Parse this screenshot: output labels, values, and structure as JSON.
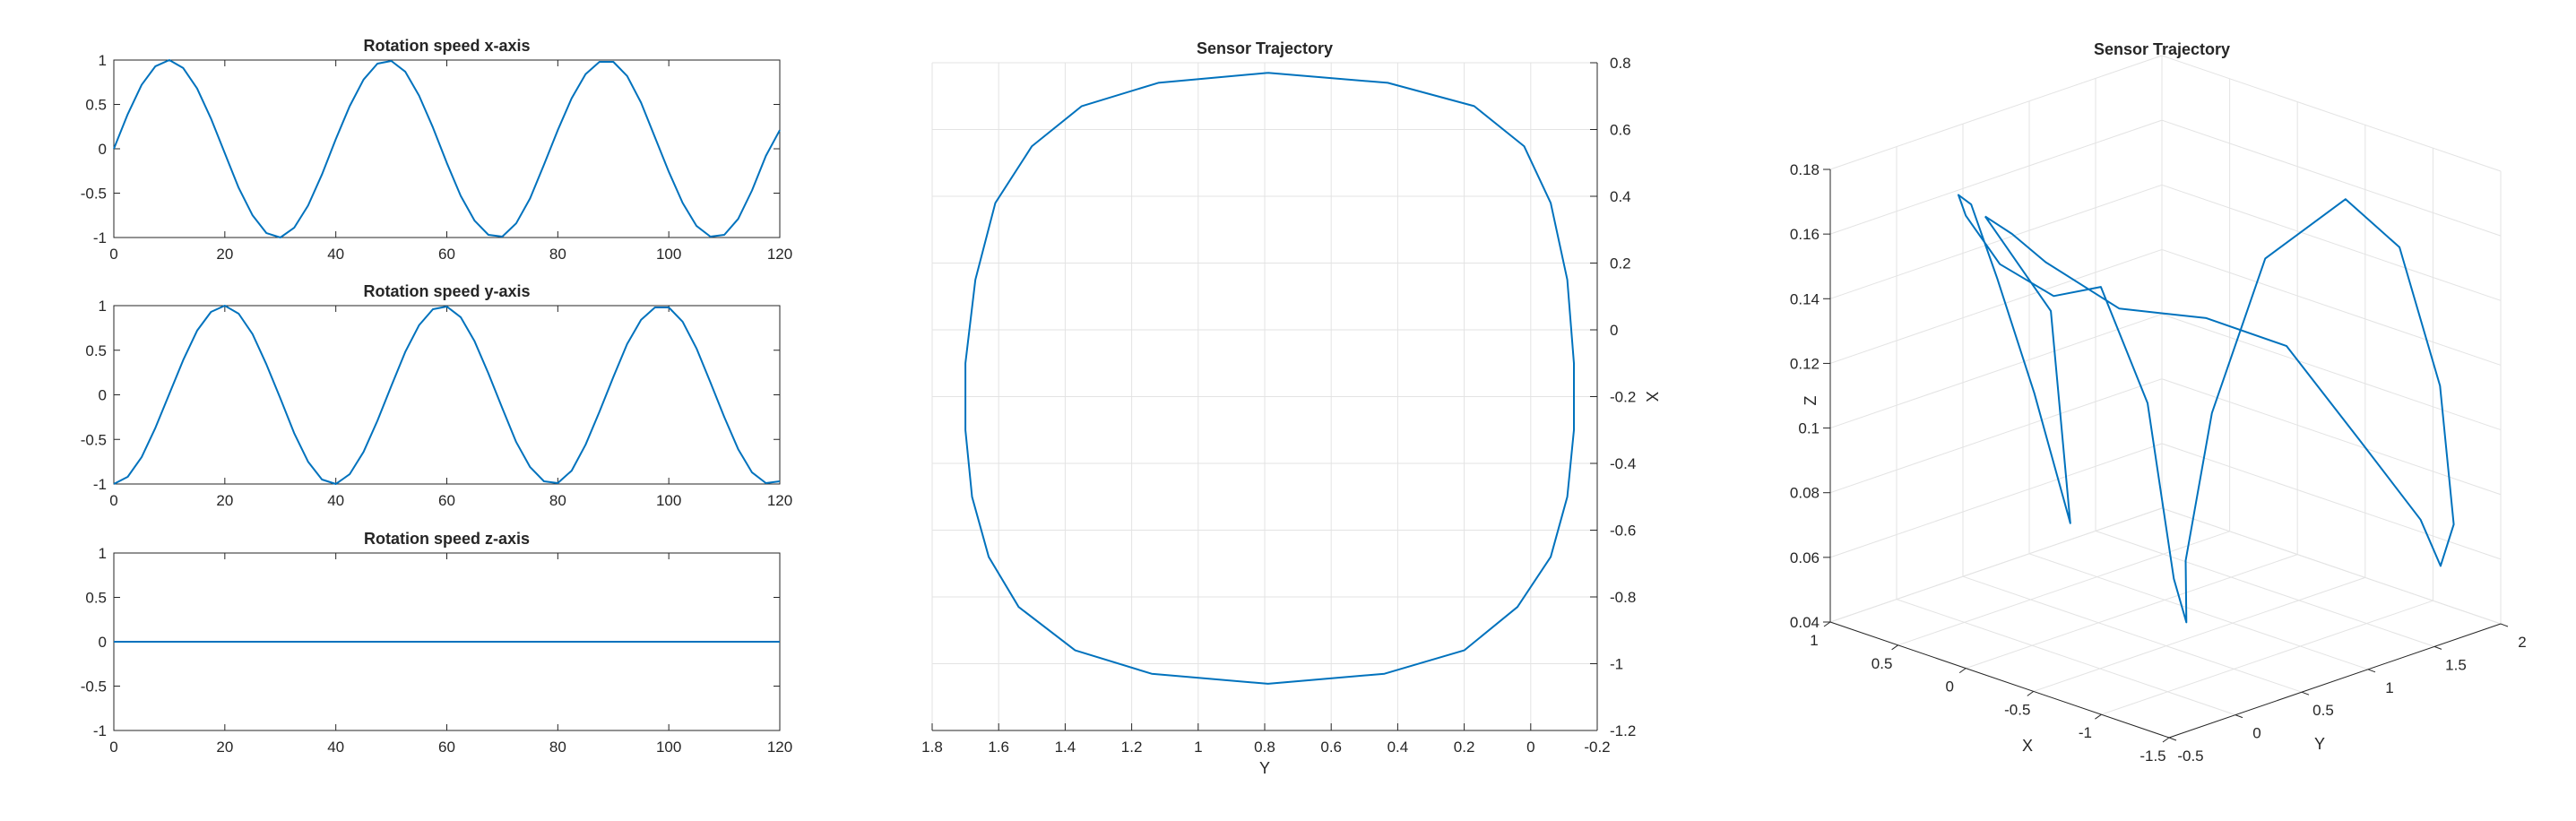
{
  "figure": {
    "background": "#ffffff",
    "line_color": "#0072BD",
    "axis_color": "#262626",
    "grid_color": "#e3e3e3"
  },
  "chart_data": [
    {
      "id": "rot-x",
      "type": "line",
      "title": "Rotation speed x-axis",
      "xlabel": "",
      "ylabel": "",
      "xlim": [
        0,
        120
      ],
      "ylim": [
        -1,
        1
      ],
      "xticks": [
        0,
        20,
        40,
        60,
        80,
        100,
        120
      ],
      "yticks": [
        -1,
        -0.5,
        0,
        0.5,
        1
      ],
      "grid": false,
      "series": [
        {
          "x": [
            0,
            2.5,
            5,
            7.5,
            10,
            12.5,
            15,
            17.5,
            20,
            22.5,
            25,
            27.5,
            30,
            32.5,
            35,
            37.5,
            40,
            42.5,
            45,
            47.5,
            50,
            52.5,
            55,
            57.5,
            60,
            62.5,
            65,
            67.5,
            70,
            72.5,
            75,
            77.5,
            80,
            82.5,
            85,
            87.5,
            90,
            92.5,
            95,
            97.5,
            100,
            102.5,
            105,
            107.5,
            110,
            112.5,
            115,
            117.5,
            120
          ],
          "y": [
            0.0,
            0.39,
            0.72,
            0.93,
            1.0,
            0.91,
            0.68,
            0.34,
            -0.05,
            -0.44,
            -0.75,
            -0.95,
            -1.0,
            -0.89,
            -0.64,
            -0.29,
            0.11,
            0.48,
            0.78,
            0.96,
            0.99,
            0.87,
            0.6,
            0.24,
            -0.16,
            -0.53,
            -0.81,
            -0.97,
            -0.99,
            -0.84,
            -0.56,
            -0.18,
            0.21,
            0.57,
            0.84,
            0.98,
            0.98,
            0.82,
            0.52,
            0.13,
            -0.26,
            -0.61,
            -0.87,
            -0.99,
            -0.97,
            -0.79,
            -0.47,
            -0.08,
            0.21
          ]
        }
      ]
    },
    {
      "id": "rot-y",
      "type": "line",
      "title": "Rotation speed y-axis",
      "xlabel": "",
      "ylabel": "",
      "xlim": [
        0,
        120
      ],
      "ylim": [
        -1,
        1
      ],
      "xticks": [
        0,
        20,
        40,
        60,
        80,
        100,
        120
      ],
      "yticks": [
        -1,
        -0.5,
        0,
        0.5,
        1
      ],
      "grid": false,
      "series": [
        {
          "x": [
            0,
            2.5,
            5,
            7.5,
            10,
            12.5,
            15,
            17.5,
            20,
            22.5,
            25,
            27.5,
            30,
            32.5,
            35,
            37.5,
            40,
            42.5,
            45,
            47.5,
            50,
            52.5,
            55,
            57.5,
            60,
            62.5,
            65,
            67.5,
            70,
            72.5,
            75,
            77.5,
            80,
            82.5,
            85,
            87.5,
            90,
            92.5,
            95,
            97.5,
            100,
            102.5,
            105,
            107.5,
            110,
            112.5,
            115,
            117.5,
            120
          ],
          "y": [
            -1.0,
            -0.92,
            -0.7,
            -0.37,
            0.01,
            0.39,
            0.72,
            0.93,
            1.0,
            0.91,
            0.68,
            0.34,
            -0.04,
            -0.43,
            -0.75,
            -0.95,
            -1.0,
            -0.89,
            -0.64,
            -0.29,
            0.1,
            0.48,
            0.78,
            0.96,
            0.99,
            0.87,
            0.6,
            0.24,
            -0.15,
            -0.53,
            -0.81,
            -0.97,
            -0.99,
            -0.85,
            -0.56,
            -0.19,
            0.2,
            0.57,
            0.84,
            0.98,
            0.98,
            0.82,
            0.52,
            0.14,
            -0.25,
            -0.61,
            -0.87,
            -0.99,
            -0.97
          ]
        }
      ]
    },
    {
      "id": "rot-z",
      "type": "line",
      "title": "Rotation speed z-axis",
      "xlabel": "",
      "ylabel": "",
      "xlim": [
        0,
        120
      ],
      "ylim": [
        -1,
        1
      ],
      "xticks": [
        0,
        20,
        40,
        60,
        80,
        100,
        120
      ],
      "yticks": [
        -1,
        -0.5,
        0,
        0.5,
        1
      ],
      "grid": false,
      "series": [
        {
          "x": [
            0,
            120
          ],
          "y": [
            0,
            0
          ]
        }
      ]
    },
    {
      "id": "traj-2d",
      "type": "line",
      "title": "Sensor Trajectory",
      "xlabel": "Y",
      "ylabel": "X",
      "x_reversed": true,
      "y_axis_location": "right",
      "xlim": [
        -0.2,
        1.8
      ],
      "ylim": [
        -1.2,
        0.8
      ],
      "xticks": [
        1.8,
        1.6,
        1.4,
        1.2,
        1,
        0.8,
        0.6,
        0.4,
        0.2,
        0,
        -0.2
      ],
      "yticks": [
        0.8,
        0.6,
        0.4,
        0.2,
        0,
        -0.2,
        -0.4,
        -0.6,
        -0.8,
        -1,
        -1.2
      ],
      "grid": true,
      "series": [
        {
          "x": [
            0.79,
            1.12,
            1.35,
            1.5,
            1.61,
            1.67,
            1.7,
            1.7,
            1.68,
            1.63,
            1.54,
            1.37,
            1.14,
            0.79,
            0.44,
            0.2,
            0.04,
            -0.06,
            -0.11,
            -0.13,
            -0.13,
            -0.11,
            -0.06,
            0.02,
            0.17,
            0.43,
            0.79
          ],
          "y": [
            0.77,
            0.74,
            0.67,
            0.55,
            0.38,
            0.15,
            -0.1,
            -0.3,
            -0.5,
            -0.68,
            -0.83,
            -0.96,
            -1.03,
            -1.06,
            -1.03,
            -0.96,
            -0.83,
            -0.68,
            -0.5,
            -0.3,
            -0.1,
            0.15,
            0.38,
            0.55,
            0.67,
            0.74,
            0.77
          ]
        }
      ]
    },
    {
      "id": "traj-3d",
      "type": "line",
      "title": "Sensor Trajectory",
      "xlabel": "X",
      "ylabel": "Y",
      "zlabel": "Z",
      "xlim": [
        -1.5,
        1
      ],
      "ylim": [
        -0.5,
        2
      ],
      "zlim": [
        0.04,
        0.18
      ],
      "xticks": [
        1,
        0.5,
        0,
        -0.5,
        -1,
        -1.5
      ],
      "yticks": [
        -0.5,
        0,
        0.5,
        1,
        1.5,
        2
      ],
      "zticks": [
        0.04,
        0.06,
        0.08,
        0.1,
        0.12,
        0.14,
        0.16,
        0.18
      ],
      "grid": true,
      "series": [
        {
          "x": [
            0.2,
            0.05,
            -0.1,
            -0.35,
            -0.6,
            -0.85,
            -1.1,
            -1.3,
            -1.35,
            -1.3,
            -1.15,
            -0.9,
            -0.6,
            -0.35,
            -0.25,
            -0.35,
            -0.6,
            -0.85,
            -0.95,
            -0.85,
            -0.6,
            -0.3,
            0.0,
            0.25,
            0.45,
            0.6,
            0.62,
            0.55,
            0.4,
            0.2
          ],
          "y": [
            -0.15,
            -0.1,
            0.0,
            0.3,
            0.7,
            1.05,
            1.35,
            1.6,
            1.7,
            1.85,
            1.9,
            1.85,
            1.75,
            1.4,
            1.1,
            0.8,
            0.55,
            0.2,
            -0.1,
            -0.35,
            -0.45,
            -0.55,
            -0.5,
            -0.3,
            0.0,
            0.35,
            0.65,
            0.85,
            0.55,
            -0.15
          ],
          "z": [
            0.172,
            0.168,
            0.16,
            0.145,
            0.14,
            0.13,
            0.1,
            0.075,
            0.06,
            0.07,
            0.11,
            0.15,
            0.162,
            0.145,
            0.1,
            0.06,
            0.048,
            0.07,
            0.13,
            0.168,
            0.163,
            0.17,
            0.18,
            0.18,
            0.17,
            0.14,
            0.1,
            0.058,
            0.13,
            0.172
          ]
        }
      ]
    }
  ]
}
